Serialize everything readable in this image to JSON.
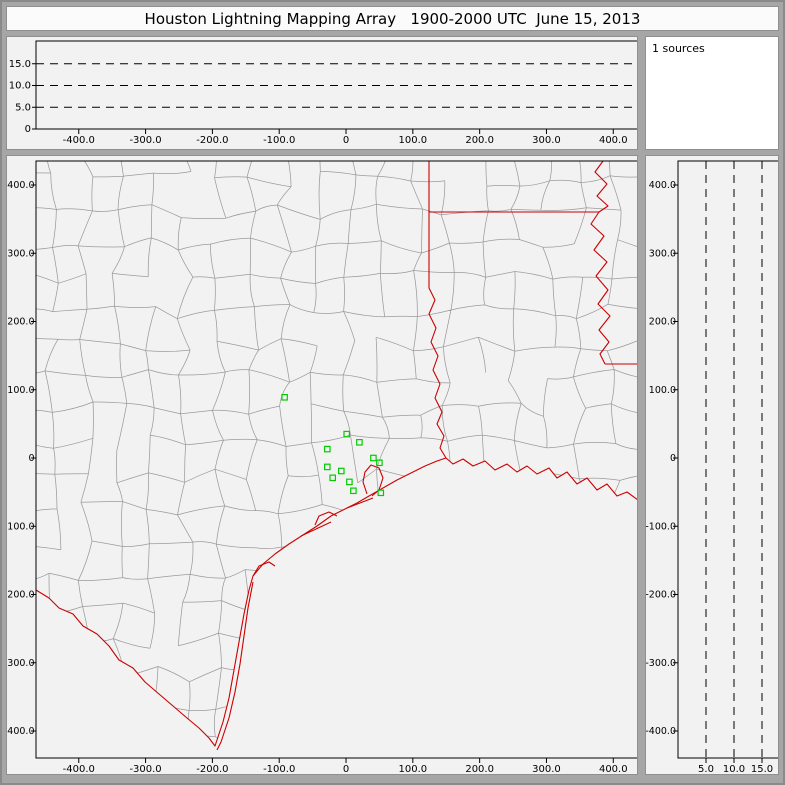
{
  "window": {
    "title": "Houston Lightning Mapping Array   1900-2000 UTC  June 15, 2013"
  },
  "colors": {
    "frame_gray": "#a6a6a6",
    "panel_bg": "#f2f2f2",
    "county_line": "#9b9b9b",
    "state_line": "#cc0000",
    "station_green": "#00cc00",
    "axis_black": "#000000"
  },
  "panels": {
    "sources": {
      "label": "1 sources"
    },
    "altitude_ew": {
      "y_tick_labels": [
        "15.0",
        "10.0",
        "5.0",
        "0"
      ],
      "x_tick_labels": [
        "-400.0",
        "-300.0",
        "-200.0",
        "-100.0",
        "0",
        "100.0",
        "200.0",
        "300.0",
        "400.0"
      ]
    },
    "map": {
      "x_tick_labels": [
        "-400.0",
        "-300.0",
        "-200.0",
        "-100.0",
        "0",
        "100.0",
        "200.0",
        "300.0",
        "400.0"
      ],
      "y_tick_labels": [
        "400.0",
        "300.0",
        "200.0",
        "100.0",
        "0",
        "-100.0",
        "-200.0",
        "-300.0",
        "-400.0"
      ]
    },
    "altitude_ns": {
      "x_tick_labels": [
        "5.0",
        "10.0",
        "15.0"
      ],
      "y_tick_labels": [
        "400.0",
        "300.0",
        "200.0",
        "100.0",
        "0",
        "-100.0",
        "-200.0",
        "-300.0",
        "-400.0"
      ]
    }
  },
  "chart_data": [
    {
      "name": "plan-view-map",
      "type": "scatter",
      "title": "Houston Lightning Mapping Array 1900-2000 UTC June 15, 2013",
      "xlim": [
        -400,
        400
      ],
      "ylim": [
        -400,
        400
      ],
      "x_ticks": [
        -400,
        -300,
        -200,
        -100,
        0,
        100,
        200,
        300,
        400
      ],
      "y_ticks": [
        400,
        300,
        200,
        100,
        0,
        -100,
        -200,
        -300,
        -400
      ],
      "grid": false,
      "legend": false,
      "series": [
        {
          "name": "lma-stations",
          "marker": "open-square",
          "color": "#00cc00",
          "points_km_east_north": [
            [
              -92,
              89
            ],
            [
              1,
              35
            ],
            [
              20,
              23
            ],
            [
              -28,
              13
            ],
            [
              41,
              0
            ],
            [
              50,
              -7
            ],
            [
              -28,
              -13
            ],
            [
              -7,
              -19
            ],
            [
              -20,
              -29
            ],
            [
              5,
              -35
            ],
            [
              11,
              -48
            ],
            [
              52,
              -51
            ]
          ]
        }
      ],
      "overlays": [
        {
          "name": "county-boundaries",
          "color": "#9b9b9b"
        },
        {
          "name": "state-borders-and-coastline",
          "color": "#cc0000"
        }
      ]
    },
    {
      "name": "altitude-vs-east-west",
      "type": "scatter",
      "xlim": [
        -400,
        400
      ],
      "ylim": [
        0,
        20
      ],
      "x_ticks": [
        -400,
        -300,
        -200,
        -100,
        0,
        100,
        200,
        300,
        400
      ],
      "y_ticks": [
        15,
        10,
        5,
        0
      ],
      "y_gridlines_dashed": [
        5,
        10,
        15
      ],
      "points": []
    },
    {
      "name": "altitude-vs-north-south",
      "type": "scatter",
      "xlim": [
        0,
        20
      ],
      "ylim": [
        -400,
        400
      ],
      "x_ticks": [
        5,
        10,
        15
      ],
      "x_gridlines_dashed": [
        5,
        10,
        15
      ],
      "y_ticks": [
        400,
        300,
        200,
        100,
        0,
        -100,
        -200,
        -300,
        -400
      ],
      "points": []
    },
    {
      "name": "source-count-box",
      "type": "annotation",
      "text": "1 sources"
    }
  ]
}
